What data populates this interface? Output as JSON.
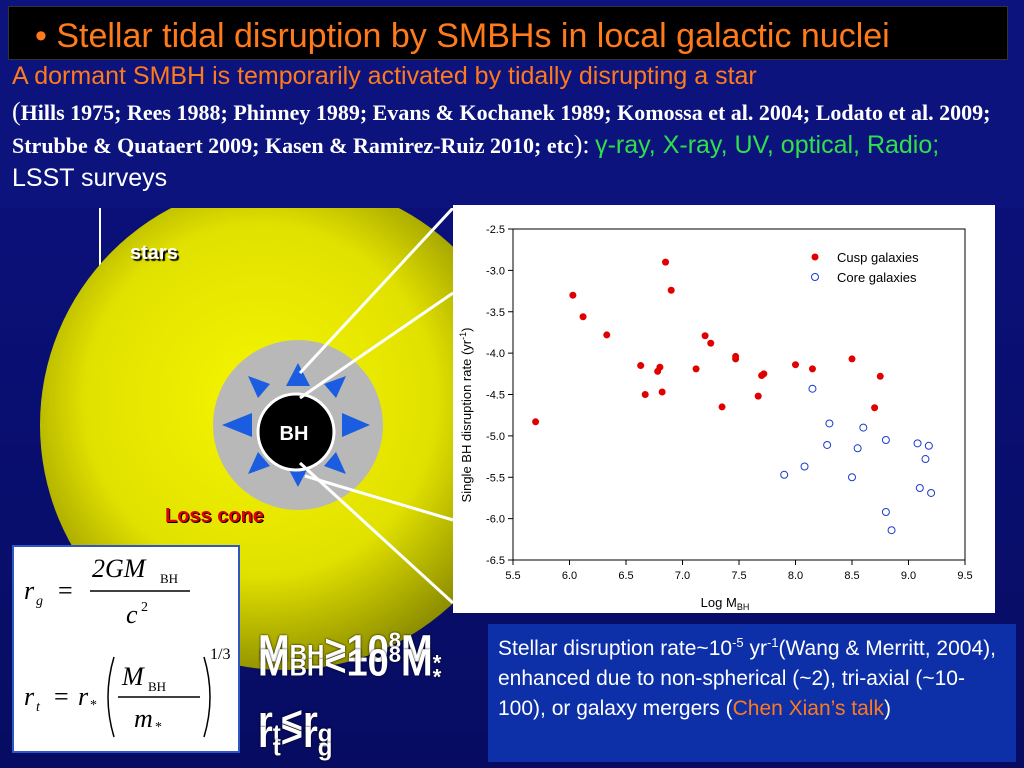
{
  "title": "• Stellar tidal disruption by SMBHs in local galactic nuclei",
  "intro": "A dormant SMBH is temporarily activated by tidally disrupting a star",
  "refs_open": "(",
  "refs": "Hills 1975; Rees 1988; Phinney 1989; Evans & Kochanek 1989; Komossa et al. 2004; Lodato et al. 2009; Strubbe & Quataert 2009; Kasen & Ramirez-Ruiz 2010; etc",
  "refs_close": "):",
  "bands": "γ-ray, X-ray, UV, optical, Radio;",
  "lsst": "LSST  surveys",
  "diagram": {
    "stars_label": "stars",
    "bh_label": "BH",
    "loss_cone_label": "Loss cone",
    "colors": {
      "stars": "#e8e800",
      "loss_cone": "#b8b8b8",
      "bh": "#000000",
      "arrows": "#1a5de0"
    }
  },
  "equations": {
    "rg_lhs": "r",
    "rg_sub": "g",
    "eq": "=",
    "rg_num": "2GM",
    "rg_num_sub": "BH",
    "rg_den": "c",
    "rg_den_sup": "2",
    "rt_lhs": "r",
    "rt_sub": "t",
    "rt_rstar": "r",
    "rt_star": "*",
    "rt_num": "M",
    "rt_num_sub": "BH",
    "rt_den": "m",
    "rt_den_sub": "*",
    "rt_pow": "1/3"
  },
  "conditions": {
    "overlay1": "M",
    "overlay1_sub": "BH",
    "overlay1_rest": ">10",
    "overlay1_sup": "8",
    "overlay1_m": "M",
    "overlay1_star": "*",
    "overlay2": "M",
    "overlay2_sub": "BH",
    "overlay2_rest": "<10",
    "overlay2_sup": "8",
    "overlay2_m": "M",
    "overlay2_star": "*",
    "r1_a": "r",
    "r1_sub": "t",
    "r1_op": "<r",
    "r1_g": "g",
    "r2_a": "r",
    "r2_sub": "t",
    "r2_op": ">r",
    "r2_g": "g"
  },
  "info": {
    "text1": "Stellar disruption rate~10",
    "sup1": "-5",
    "text2": " yr",
    "sup2": "-1",
    "text3": "(Wang & Merritt, 2004), enhanced due to non-spherical (~2), tri-axial (~10-100), or galaxy mergers (",
    "talk": "Chen Xian’s talk",
    "text4": ")"
  },
  "chart_data": {
    "type": "scatter",
    "xlabel": "Log M",
    "xlabel_sub": "BH",
    "ylabel": "Single BH disruption rate (yr",
    "ylabel_sup": "-1",
    "ylabel_close": ")",
    "xlim": [
      5.5,
      9.5
    ],
    "ylim": [
      -6.5,
      -2.5
    ],
    "xticks": [
      "5.5",
      "6.0",
      "6.5",
      "7.0",
      "7.5",
      "8.0",
      "8.5",
      "9.0",
      "9.5"
    ],
    "yticks": [
      "-2.5",
      "-3.0",
      "-3.5",
      "-4.0",
      "-4.5",
      "-5.0",
      "-5.5",
      "-6.0",
      "-6.5"
    ],
    "legend_position": "top-right",
    "series": [
      {
        "name": "Cusp galaxies",
        "color": "#e00000",
        "marker": "filled-circle",
        "x": [
          5.7,
          6.03,
          6.12,
          6.33,
          6.63,
          6.67,
          6.78,
          6.8,
          6.82,
          6.85,
          6.9,
          7.12,
          7.2,
          7.25,
          7.35,
          7.47,
          7.47,
          7.67,
          7.7,
          7.72,
          8.0,
          8.15,
          8.5,
          8.7,
          8.75
        ],
        "y": [
          -4.83,
          -3.3,
          -3.56,
          -3.78,
          -4.15,
          -4.5,
          -4.22,
          -4.17,
          -4.47,
          -2.9,
          -3.24,
          -4.19,
          -3.79,
          -3.88,
          -4.65,
          -4.07,
          -4.04,
          -4.52,
          -4.27,
          -4.25,
          -4.14,
          -4.19,
          -4.07,
          -4.66,
          -4.28
        ]
      },
      {
        "name": "Core galaxies",
        "color": "#1a3cd0",
        "marker": "open-circle",
        "x": [
          7.9,
          8.08,
          8.15,
          8.28,
          8.3,
          8.5,
          8.55,
          8.6,
          8.8,
          8.8,
          8.85,
          9.08,
          9.1,
          9.15,
          9.18,
          9.2
        ],
        "y": [
          -5.47,
          -5.37,
          -4.43,
          -5.11,
          -4.85,
          -5.5,
          -5.15,
          -4.9,
          -5.05,
          -5.92,
          -6.14,
          -5.09,
          -5.63,
          -5.28,
          -5.12,
          -5.69
        ]
      }
    ]
  }
}
